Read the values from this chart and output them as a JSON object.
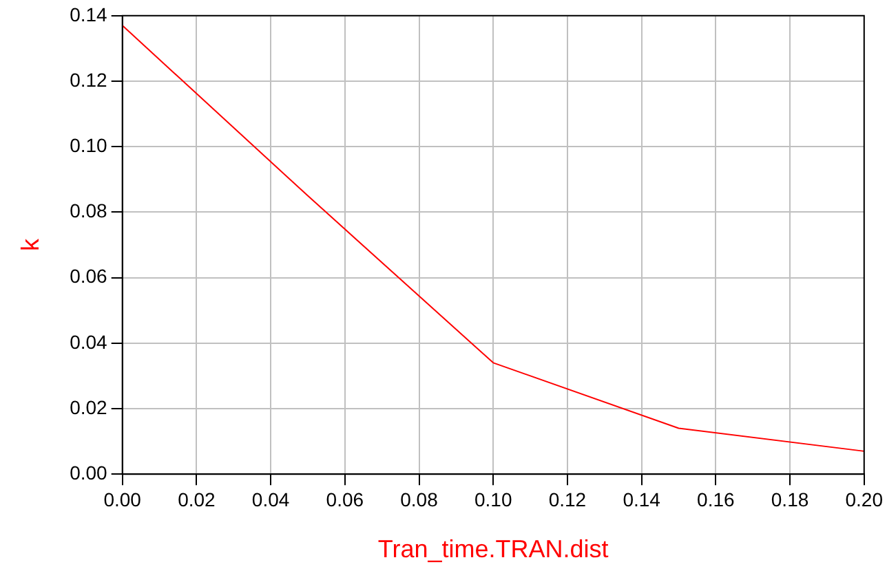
{
  "chart_data": {
    "type": "line",
    "xlabel": "Tran_time.TRAN.dist",
    "ylabel": "k",
    "x": [
      0,
      0.05,
      0.1,
      0.15,
      0.2
    ],
    "series": [
      {
        "color": "#ff0000",
        "values": [
          0.137,
          0.085,
          0.034,
          0.014,
          0.007
        ]
      }
    ],
    "xlim": [
      0,
      0.2
    ],
    "xticks": [
      {
        "value": 0,
        "label": "0.00"
      },
      {
        "value": 0.02,
        "label": "0.02"
      },
      {
        "value": 0.04,
        "label": "0.04"
      },
      {
        "value": 0.06,
        "label": "0.06"
      },
      {
        "value": 0.08,
        "label": "0.08"
      },
      {
        "value": 0.1,
        "label": "0.10"
      },
      {
        "value": 0.12,
        "label": "0.12"
      },
      {
        "value": 0.14,
        "label": "0.14"
      },
      {
        "value": 0.16,
        "label": "0.16"
      },
      {
        "value": 0.18,
        "label": "0.18"
      },
      {
        "value": 0.2,
        "label": "0.20"
      }
    ],
    "ylim": [
      0,
      0.14
    ],
    "yticks": [
      {
        "value": 0,
        "label": "0.00"
      },
      {
        "value": 0.02,
        "label": "0.02"
      },
      {
        "value": 0.04,
        "label": "0.04"
      },
      {
        "value": 0.06,
        "label": "0.06"
      },
      {
        "value": 0.08,
        "label": "0.08"
      },
      {
        "value": 0.1,
        "label": "0.10"
      },
      {
        "value": 0.12,
        "label": "0.12"
      },
      {
        "value": 0.14,
        "label": "0.14"
      }
    ],
    "grid": true,
    "marker": "none",
    "line_style": "solid",
    "legend": false
  }
}
